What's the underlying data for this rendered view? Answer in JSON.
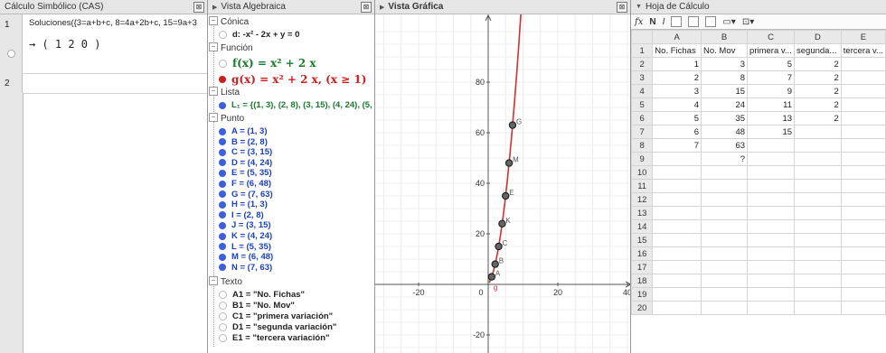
{
  "cas": {
    "title": "Cálculo Simbólico (CAS)",
    "close_glyph": "⊠",
    "rows": [
      {
        "num": "1",
        "input": "Soluciones({3=a+b+c, 8=4a+2b+c, 15=9a+3",
        "output": "→  ( 1   2   0 )"
      },
      {
        "num": "2",
        "input": "",
        "output": ""
      }
    ]
  },
  "algebra": {
    "title": "Vista Algebraica",
    "close_glyph": "⊠",
    "conica": {
      "label": "Cónica",
      "d": "d: -x² - 2x + y = 0"
    },
    "funcion": {
      "label": "Función",
      "f": "f(x) = x² + 2 x",
      "g": "g(x) = x² + 2 x,   (x ≥ 1)"
    },
    "lista": {
      "label": "Lista",
      "L1": "L₁ = {(1, 3), (2, 8), (3, 15), (4, 24), (5,"
    },
    "punto": {
      "label": "Punto",
      "items": [
        {
          "text": "A = (1, 3)",
          "visible": true
        },
        {
          "text": "B = (2, 8)",
          "visible": true
        },
        {
          "text": "C = (3, 15)",
          "visible": true
        },
        {
          "text": "D = (4, 24)",
          "visible": true
        },
        {
          "text": "E = (5, 35)",
          "visible": true
        },
        {
          "text": "F = (6, 48)",
          "visible": true
        },
        {
          "text": "G = (7, 63)",
          "visible": true
        },
        {
          "text": "H = (1, 3)",
          "visible": true
        },
        {
          "text": "I = (2, 8)",
          "visible": true
        },
        {
          "text": "J = (3, 15)",
          "visible": true
        },
        {
          "text": "K = (4, 24)",
          "visible": true
        },
        {
          "text": "L = (5, 35)",
          "visible": true
        },
        {
          "text": "M = (6, 48)",
          "visible": true
        },
        {
          "text": "N = (7, 63)",
          "visible": true
        }
      ]
    },
    "texto": {
      "label": "Texto",
      "items": [
        "A1 = \"No. Fichas\"",
        "B1 = \"No. Mov\"",
        "C1 = \"primera variación\"",
        "D1 = \"segunda variación\"",
        "E1 = \"tercera variación\""
      ]
    }
  },
  "graphics": {
    "title": "Vista Gráfica",
    "close_glyph": "⊠",
    "x_ticks": [
      "-20",
      "0",
      "20",
      "40"
    ],
    "y_ticks": [
      "80",
      "60",
      "40",
      "20",
      "-20"
    ],
    "curve_color": "#d03030",
    "point_color": "#333333",
    "point_labels": [
      "G",
      "M",
      "E",
      "K",
      "C",
      "B",
      "A",
      "g"
    ],
    "points": [
      {
        "x": 1,
        "y": 3
      },
      {
        "x": 2,
        "y": 8
      },
      {
        "x": 3,
        "y": 15
      },
      {
        "x": 4,
        "y": 24
      },
      {
        "x": 5,
        "y": 35
      },
      {
        "x": 6,
        "y": 48
      },
      {
        "x": 7,
        "y": 63
      }
    ]
  },
  "sheet": {
    "title": "Hoja de Cálculo",
    "toolbar": {
      "fx": "fx",
      "bold": "N",
      "italic": "I"
    },
    "columns": [
      "A",
      "B",
      "C",
      "D",
      "E"
    ],
    "rows": [
      {
        "n": "1",
        "cells": [
          "No. Fichas",
          "No. Mov",
          "primera v...",
          "segunda...",
          "tercera v..."
        ]
      },
      {
        "n": "2",
        "cells": [
          "1",
          "3",
          "5",
          "2",
          ""
        ]
      },
      {
        "n": "3",
        "cells": [
          "2",
          "8",
          "7",
          "2",
          ""
        ]
      },
      {
        "n": "4",
        "cells": [
          "3",
          "15",
          "9",
          "2",
          ""
        ]
      },
      {
        "n": "5",
        "cells": [
          "4",
          "24",
          "11",
          "2",
          ""
        ]
      },
      {
        "n": "6",
        "cells": [
          "5",
          "35",
          "13",
          "2",
          ""
        ]
      },
      {
        "n": "7",
        "cells": [
          "6",
          "48",
          "15",
          "",
          ""
        ]
      },
      {
        "n": "8",
        "cells": [
          "7",
          "63",
          "",
          "",
          ""
        ]
      },
      {
        "n": "9",
        "cells": [
          "",
          "?",
          "",
          "",
          ""
        ]
      },
      {
        "n": "10",
        "cells": [
          "",
          "",
          "",
          "",
          ""
        ]
      },
      {
        "n": "11",
        "cells": [
          "",
          "",
          "",
          "",
          ""
        ]
      },
      {
        "n": "12",
        "cells": [
          "",
          "",
          "",
          "",
          ""
        ]
      },
      {
        "n": "13",
        "cells": [
          "",
          "",
          "",
          "",
          ""
        ]
      },
      {
        "n": "14",
        "cells": [
          "",
          "",
          "",
          "",
          ""
        ]
      },
      {
        "n": "15",
        "cells": [
          "",
          "",
          "",
          "",
          ""
        ]
      },
      {
        "n": "16",
        "cells": [
          "",
          "",
          "",
          "",
          ""
        ]
      },
      {
        "n": "17",
        "cells": [
          "",
          "",
          "",
          "",
          ""
        ]
      },
      {
        "n": "18",
        "cells": [
          "",
          "",
          "",
          "",
          ""
        ]
      },
      {
        "n": "19",
        "cells": [
          "",
          "",
          "",
          "",
          ""
        ]
      },
      {
        "n": "20",
        "cells": [
          "",
          "",
          "",
          "",
          ""
        ]
      }
    ]
  }
}
